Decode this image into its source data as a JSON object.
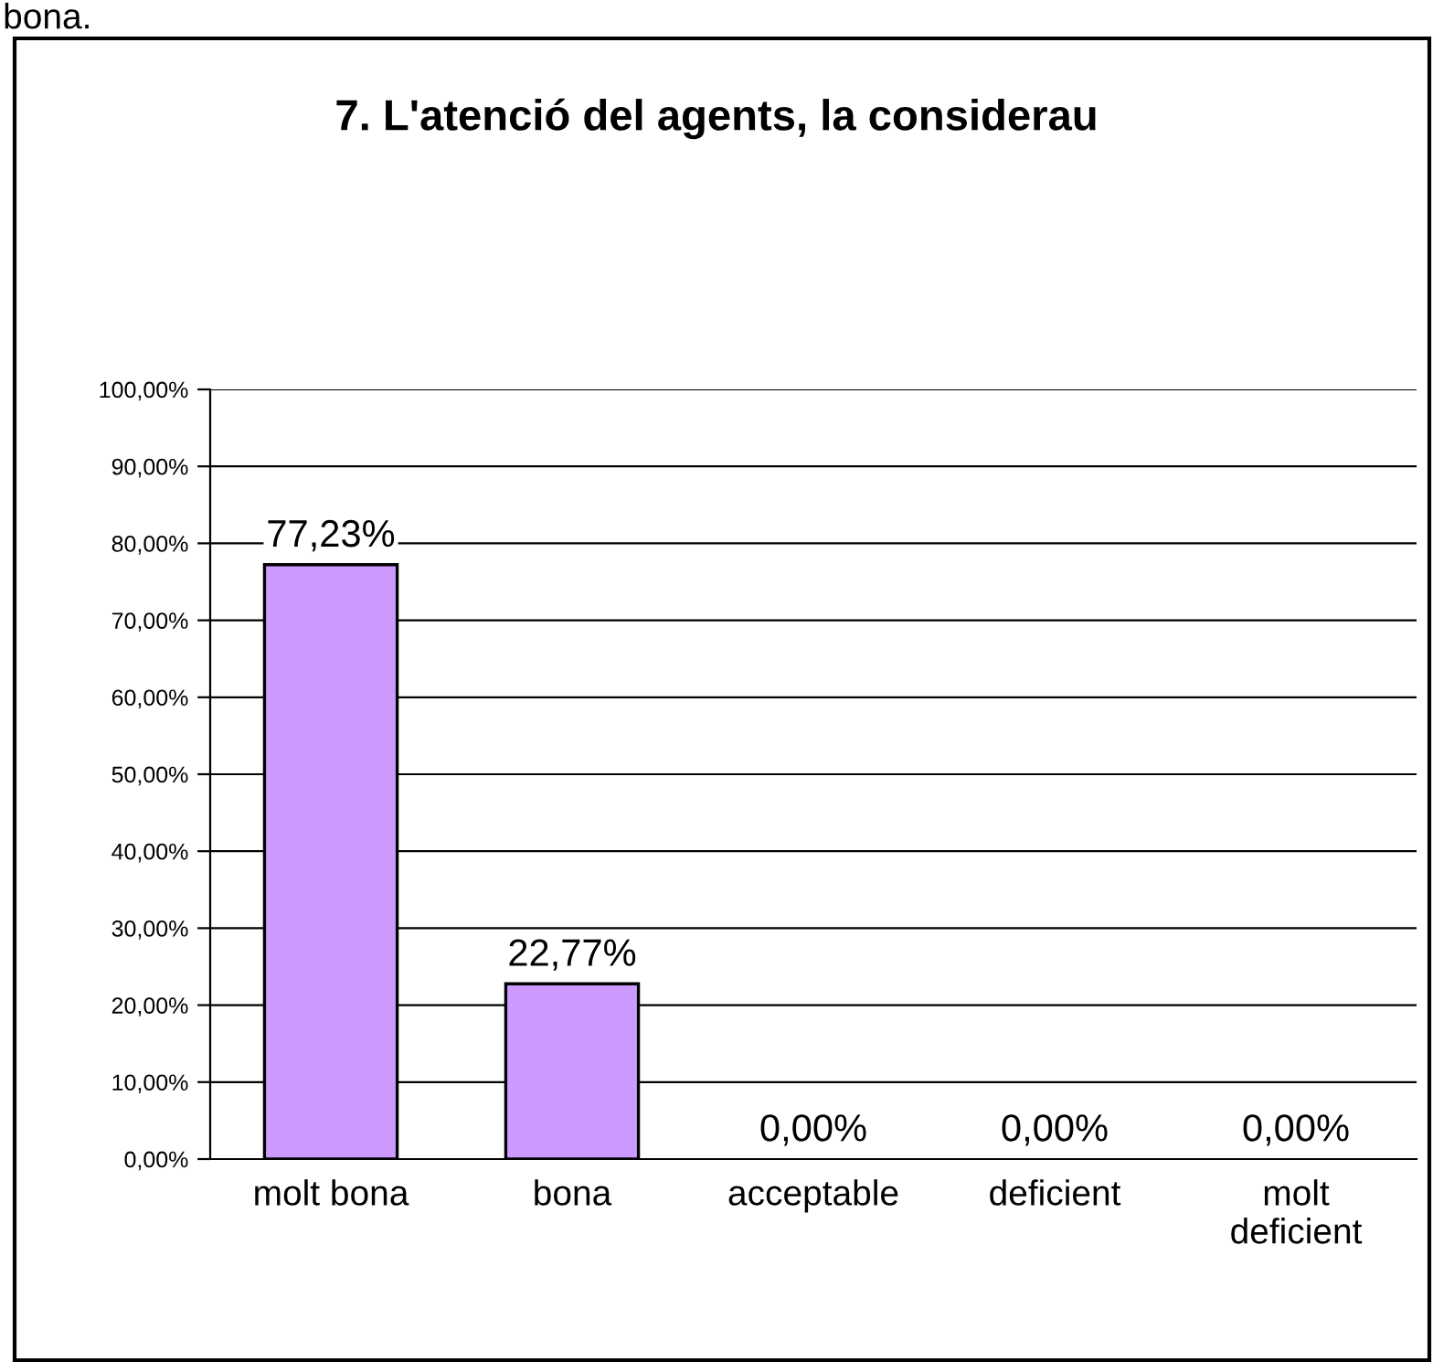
{
  "chart_data": {
    "type": "bar",
    "title": "7. L'atenció del agents, la considerau",
    "annotations": [
      "bona."
    ],
    "categories": [
      "molt bona",
      "bona",
      "acceptable",
      "deficient",
      "molt deficient"
    ],
    "values": [
      77.23,
      22.77,
      0,
      0,
      0
    ],
    "value_labels": [
      "77,23%",
      "22,77%",
      "0,00%",
      "0,00%",
      "0,00%"
    ],
    "color": "#cc99ff",
    "ylim": [
      0,
      100
    ],
    "yticks": [
      {
        "value": 0,
        "label": "0,00%"
      },
      {
        "value": 10,
        "label": "10,00%"
      },
      {
        "value": 20,
        "label": "20,00%"
      },
      {
        "value": 30,
        "label": "30,00%"
      },
      {
        "value": 40,
        "label": "40,00%"
      },
      {
        "value": 50,
        "label": "50,00%"
      },
      {
        "value": 60,
        "label": "60,00%"
      },
      {
        "value": 70,
        "label": "70,00%"
      },
      {
        "value": 80,
        "label": "80,00%"
      },
      {
        "value": 90,
        "label": "90,00%"
      },
      {
        "value": 100,
        "label": "100,00%"
      }
    ],
    "grid": "y",
    "legend": false
  }
}
